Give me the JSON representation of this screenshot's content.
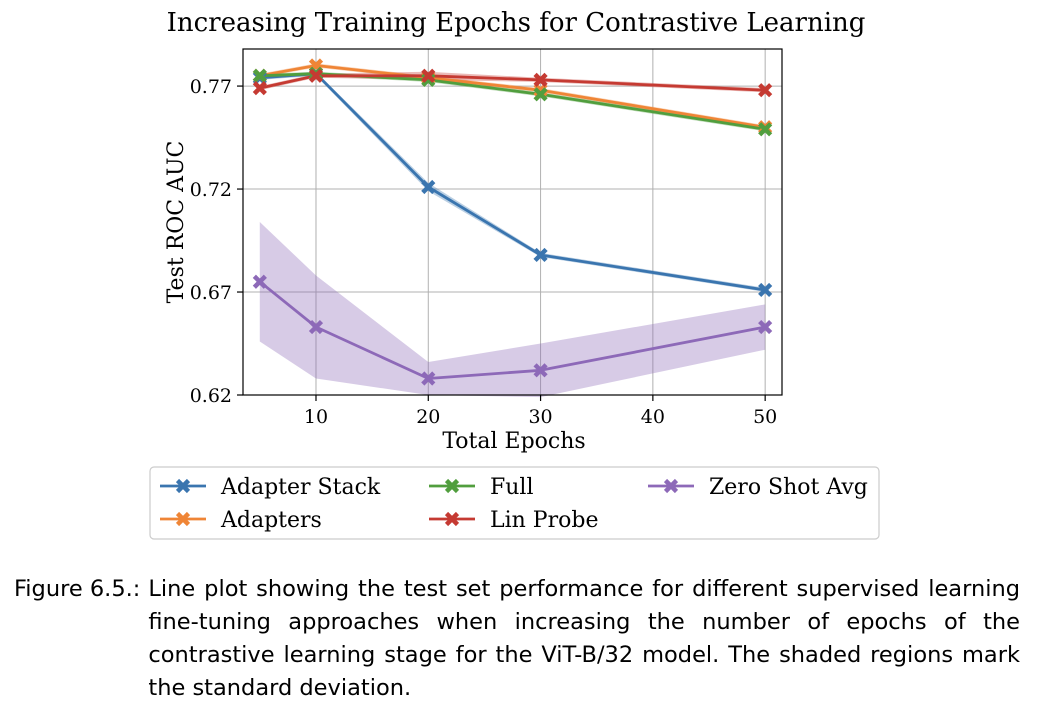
{
  "chart_data": {
    "type": "line",
    "title": "Increasing Training Epochs for Contrastive Learning",
    "xlabel": "Total Epochs",
    "ylabel": "Test ROC AUC",
    "xlim": [
      3.5,
      51.5
    ],
    "ylim": [
      0.62,
      0.788
    ],
    "xticks": [
      10,
      20,
      30,
      40,
      50
    ],
    "yticks": [
      0.62,
      0.67,
      0.72,
      0.77
    ],
    "xtick_labels": [
      "10",
      "20",
      "30",
      "40",
      "50"
    ],
    "ytick_labels": [
      "0.62",
      "0.67",
      "0.72",
      "0.77"
    ],
    "grid": true,
    "legend_position": "bottom-center, below plot, 3 columns",
    "x": [
      5,
      10,
      20,
      30,
      50
    ],
    "series": [
      {
        "name": "Adapter Stack",
        "color": "#3a75af",
        "values": [
          0.774,
          0.776,
          0.721,
          0.688,
          0.671
        ],
        "std": [
          0.001,
          0.001,
          0.002,
          0.001,
          0.001
        ]
      },
      {
        "name": "Adapters",
        "color": "#ef8536",
        "values": [
          0.775,
          0.78,
          0.774,
          0.768,
          0.75
        ],
        "std": [
          0.001,
          0.001,
          0.001,
          0.001,
          0.001
        ]
      },
      {
        "name": "Full",
        "color": "#519e3e",
        "values": [
          0.775,
          0.776,
          0.773,
          0.766,
          0.749
        ],
        "std": [
          0.001,
          0.001,
          0.001,
          0.001,
          0.001
        ]
      },
      {
        "name": "Lin Probe",
        "color": "#c53a32",
        "values": [
          0.769,
          0.775,
          0.775,
          0.773,
          0.768
        ],
        "std": [
          0.001,
          0.001,
          0.002,
          0.001,
          0.001
        ]
      },
      {
        "name": "Zero Shot Avg",
        "color": "#8d69b8",
        "values": [
          0.675,
          0.653,
          0.628,
          0.632,
          0.653
        ],
        "std": [
          0.029,
          0.025,
          0.008,
          0.013,
          0.011
        ]
      }
    ]
  },
  "caption": {
    "label": "Figure 6.5.:",
    "text": "Line plot showing the test set performance for different supervised learning fine-tuning approaches when increasing the number of epochs of the contrastive learning stage for the ViT-B/32 model. The shaded regions mark the standard deviation."
  }
}
